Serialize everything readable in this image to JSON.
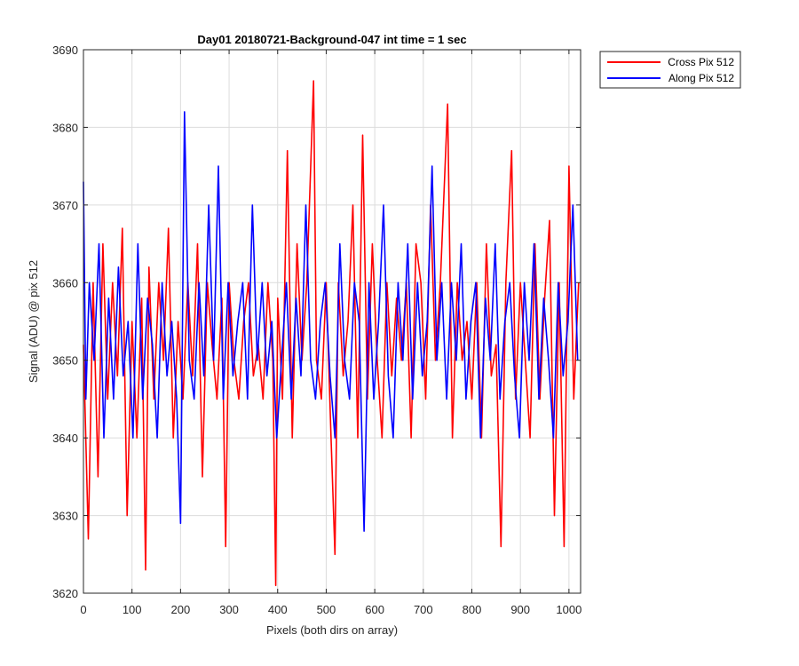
{
  "chart_data": {
    "type": "line",
    "title": "Day01 20180721-Background-047 int time = 1 sec",
    "xlabel": "Pixels (both dirs on array)",
    "ylabel": "Signal (ADU) @ pix 512",
    "xlim": [
      0,
      1024
    ],
    "ylim": [
      3620,
      3690
    ],
    "xticks": [
      0,
      100,
      200,
      300,
      400,
      500,
      600,
      700,
      800,
      900,
      1000
    ],
    "yticks": [
      3620,
      3630,
      3640,
      3650,
      3660,
      3670,
      3680,
      3690
    ],
    "grid": true,
    "legend_position": "outside-top-right",
    "series": [
      {
        "name": "Cross Pix 512",
        "color": "#ff0000",
        "x": [
          0,
          10,
          20,
          30,
          40,
          50,
          60,
          70,
          80,
          90,
          100,
          110,
          120,
          128,
          135,
          145,
          155,
          165,
          175,
          185,
          195,
          205,
          215,
          225,
          235,
          245,
          255,
          265,
          275,
          285,
          293,
          300,
          310,
          320,
          330,
          340,
          350,
          360,
          370,
          380,
          390,
          396,
          400,
          410,
          420,
          430,
          440,
          450,
          460,
          474,
          480,
          490,
          500,
          510,
          518,
          525,
          535,
          545,
          555,
          565,
          575,
          585,
          595,
          605,
          615,
          625,
          635,
          645,
          655,
          665,
          675,
          685,
          695,
          705,
          715,
          725,
          735,
          750,
          760,
          770,
          780,
          790,
          800,
          810,
          820,
          830,
          840,
          850,
          860,
          870,
          882,
          890,
          900,
          910,
          920,
          930,
          940,
          950,
          960,
          970,
          980,
          990,
          1000,
          1010,
          1020
        ],
        "values": [
          3652,
          3627,
          3660,
          3635,
          3665,
          3645,
          3660,
          3648,
          3667,
          3630,
          3655,
          3640,
          3658,
          3623,
          3662,
          3645,
          3660,
          3650,
          3667,
          3640,
          3655,
          3645,
          3660,
          3648,
          3665,
          3635,
          3660,
          3652,
          3645,
          3658,
          3626,
          3660,
          3650,
          3645,
          3655,
          3660,
          3648,
          3652,
          3645,
          3660,
          3650,
          3621,
          3658,
          3645,
          3677,
          3640,
          3665,
          3650,
          3660,
          3686,
          3650,
          3645,
          3660,
          3640,
          3625,
          3660,
          3648,
          3655,
          3670,
          3640,
          3679,
          3645,
          3665,
          3650,
          3640,
          3660,
          3648,
          3658,
          3650,
          3660,
          3640,
          3665,
          3660,
          3645,
          3670,
          3650,
          3660,
          3683,
          3640,
          3660,
          3650,
          3655,
          3645,
          3660,
          3640,
          3665,
          3648,
          3652,
          3626,
          3660,
          3677,
          3645,
          3660,
          3650,
          3640,
          3665,
          3645,
          3658,
          3668,
          3630,
          3660,
          3626,
          3675,
          3645,
          3660
        ]
      },
      {
        "name": "Along Pix 512",
        "color": "#0000ff",
        "x": [
          0,
          5,
          12,
          22,
          32,
          42,
          52,
          62,
          72,
          82,
          92,
          102,
          112,
          122,
          132,
          142,
          152,
          162,
          172,
          182,
          192,
          200,
          208,
          218,
          228,
          238,
          248,
          258,
          268,
          278,
          288,
          298,
          308,
          318,
          328,
          338,
          348,
          358,
          368,
          378,
          388,
          398,
          408,
          418,
          428,
          438,
          448,
          458,
          468,
          478,
          488,
          498,
          508,
          518,
          528,
          538,
          548,
          558,
          568,
          578,
          588,
          598,
          608,
          618,
          628,
          638,
          648,
          658,
          668,
          678,
          688,
          698,
          708,
          718,
          728,
          738,
          748,
          758,
          768,
          778,
          788,
          798,
          808,
          818,
          828,
          838,
          848,
          858,
          868,
          878,
          888,
          898,
          908,
          918,
          928,
          938,
          948,
          958,
          968,
          978,
          988,
          998,
          1008,
          1018
        ],
        "values": [
          3673,
          3645,
          3660,
          3650,
          3665,
          3640,
          3658,
          3645,
          3662,
          3648,
          3655,
          3640,
          3665,
          3645,
          3658,
          3652,
          3640,
          3660,
          3648,
          3655,
          3645,
          3629,
          3682,
          3650,
          3645,
          3660,
          3648,
          3670,
          3650,
          3675,
          3645,
          3660,
          3648,
          3655,
          3660,
          3645,
          3670,
          3650,
          3660,
          3648,
          3655,
          3640,
          3650,
          3660,
          3645,
          3658,
          3648,
          3670,
          3650,
          3645,
          3655,
          3660,
          3648,
          3640,
          3665,
          3650,
          3645,
          3660,
          3655,
          3628,
          3660,
          3645,
          3655,
          3670,
          3648,
          3640,
          3660,
          3650,
          3665,
          3645,
          3660,
          3648,
          3655,
          3675,
          3650,
          3660,
          3645,
          3660,
          3650,
          3665,
          3645,
          3655,
          3660,
          3640,
          3658,
          3650,
          3665,
          3645,
          3655,
          3660,
          3648,
          3640,
          3660,
          3650,
          3665,
          3645,
          3658,
          3650,
          3640,
          3660,
          3648,
          3655,
          3670,
          3650
        ]
      }
    ]
  }
}
